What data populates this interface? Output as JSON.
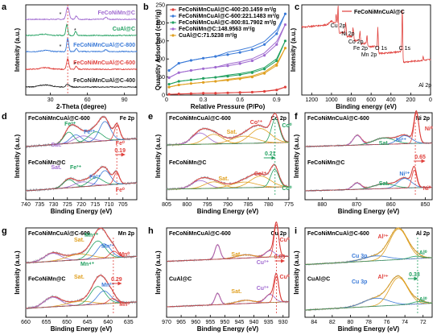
{
  "chart_data": [
    {
      "id": "a",
      "type": "line",
      "panel_letter": "a",
      "xlabel": "2-Theta (degree)",
      "ylabel": "Intensity (a.u.)",
      "xlim": [
        10,
        100
      ],
      "xticks": [
        30,
        60,
        90
      ],
      "series": [
        {
          "name": "FeCoNiMn@C",
          "color": "#a06ad0"
        },
        {
          "name": "CuAl@C",
          "color": "#22a060"
        },
        {
          "name": "FeCoNiMnCuAl@C-800",
          "color": "#3a7ad8"
        },
        {
          "name": "FeCoNiMnCuAl@C-600",
          "color": "#e0403c"
        },
        {
          "name": "FeCoNiMnCuAl@C-400",
          "color": "#222222"
        }
      ],
      "markers": [
        "*",
        "*",
        "*",
        "*"
      ]
    },
    {
      "id": "b",
      "type": "line",
      "panel_letter": "b",
      "xlabel": "Relative Pressure (P/Po)",
      "ylabel": "Quantity Adsorbed (cm³/g)",
      "xlim": [
        0.0,
        1.0
      ],
      "ylim": [
        0,
        250
      ],
      "xticks": [
        0.0,
        0.3,
        0.6,
        0.9
      ],
      "yticks": [
        0,
        50,
        100,
        150,
        200,
        250
      ],
      "series": [
        {
          "name": "FeCoNiMnCuAl@C-400:20.1459 m²/g",
          "color": "#e0403c",
          "values_x": [
            0.02,
            0.1,
            0.2,
            0.3,
            0.4,
            0.5,
            0.6,
            0.7,
            0.8,
            0.9,
            0.97
          ],
          "values_y": [
            2,
            3,
            4,
            5,
            5,
            6,
            7,
            8,
            10,
            14,
            22
          ]
        },
        {
          "name": "FeCoNiMnCuAl@C-600:221.1483 m²/g",
          "color": "#3a7ad8",
          "values_x": [
            0.02,
            0.1,
            0.2,
            0.3,
            0.4,
            0.5,
            0.6,
            0.7,
            0.8,
            0.9,
            0.97
          ],
          "values_y": [
            68,
            88,
            96,
            102,
            107,
            112,
            118,
            126,
            140,
            170,
            225
          ]
        },
        {
          "name": "FeCoNiMnCuAl@C-800:81.7902 m²/g",
          "color": "#22a060",
          "values_x": [
            0.02,
            0.1,
            0.2,
            0.3,
            0.4,
            0.5,
            0.6,
            0.7,
            0.8,
            0.9,
            0.97
          ],
          "values_y": [
            30,
            38,
            42,
            46,
            49,
            52,
            56,
            62,
            72,
            95,
            150
          ]
        },
        {
          "name": "FeCoNiMn@C:148.9563 m²/g",
          "color": "#a06ad0",
          "values_x": [
            0.02,
            0.1,
            0.2,
            0.3,
            0.4,
            0.5,
            0.6,
            0.7,
            0.8,
            0.9,
            0.97
          ],
          "values_y": [
            48,
            62,
            68,
            73,
            77,
            81,
            87,
            95,
            110,
            140,
            195
          ]
        },
        {
          "name": "CuAl@C:71.5238 m²/g",
          "color": "#e0a020",
          "values_x": [
            0.02,
            0.1,
            0.2,
            0.3,
            0.4,
            0.5,
            0.6,
            0.7,
            0.8,
            0.9,
            0.97
          ],
          "values_y": [
            22,
            28,
            32,
            35,
            38,
            41,
            45,
            50,
            60,
            82,
            130
          ]
        }
      ]
    },
    {
      "id": "c",
      "type": "line",
      "panel_letter": "c",
      "xlabel": "Binding energy (eV)",
      "ylabel": "Intensity (a.u.)",
      "xlim": [
        1300,
        0
      ],
      "xticks": [
        1200,
        1000,
        800,
        600,
        400,
        200,
        0
      ],
      "legend": "FeCoNiMnCuAl@C",
      "annotations": [
        "Cu 2p",
        "Ni 2p",
        "Co 2p",
        "Fe 2p",
        "Mn 2p",
        "O 1s",
        "C 1s",
        "Al 2p"
      ]
    },
    {
      "id": "d",
      "type": "line",
      "panel_letter": "d",
      "xlabel": "Binding Energy (eV)",
      "ylabel": "Intensity (a.u.)",
      "xlim": [
        740,
        700
      ],
      "xticks": [
        740,
        735,
        730,
        725,
        720,
        715,
        710,
        705
      ],
      "top_label": "FeCoNiMnCuAl@C-600",
      "bottom_label": "FeCoNiMn@C",
      "element": "Fe 2p",
      "shift": "0.19",
      "annotations": [
        "Fe³⁺",
        "Fe²⁺",
        "Sat.",
        "Fe⁰",
        "Sat.",
        "Fe³⁺",
        "Fe²⁺",
        "Fe⁰"
      ]
    },
    {
      "id": "e",
      "type": "line",
      "panel_letter": "e",
      "xlabel": "Binding Energy (eV)",
      "ylabel": "Intensity (a.u.)",
      "xlim": [
        805,
        775
      ],
      "xticks": [
        805,
        800,
        795,
        790,
        785,
        780,
        775
      ],
      "top_label": "FeCoNiMnCuAl@C-600",
      "bottom_label": "FeCoNiMn@C",
      "element": "Co 2p",
      "shift": "0.21",
      "annotations": [
        "Sat.",
        "Co²⁺",
        "Co⁰",
        "Sat.",
        "Co²⁺",
        "Co⁰"
      ]
    },
    {
      "id": "f",
      "type": "line",
      "panel_letter": "f",
      "xlabel": "Binding Energy (eV)",
      "ylabel": "Intensity (a.u.)",
      "xlim": [
        885,
        848
      ],
      "xticks": [
        880,
        870,
        860,
        850
      ],
      "top_label": "FeCoNiMnCuAl@C-600",
      "bottom_label": "FeCoNiMn@C",
      "element": "Ni 2p",
      "shift": "0.65",
      "annotations": [
        "Sat.",
        "Ni²⁺",
        "Ni⁰",
        "Sat.",
        "Ni²⁺",
        "Ni⁰"
      ]
    },
    {
      "id": "g",
      "type": "line",
      "panel_letter": "g",
      "xlabel": "Binding Energy (eV)",
      "ylabel": "Intensity (a.u.)",
      "xlim": [
        660,
        633
      ],
      "xticks": [
        660,
        655,
        650,
        645,
        640,
        635
      ],
      "top_label": "FeCoNiMnCuAl@C-600",
      "bottom_label": "FeCoNiMn@C",
      "element": "Mn 2p",
      "shift": "0.29",
      "annotations": [
        "Mn⁴⁺",
        "Sat.",
        "Mn²⁺",
        "Mn⁰",
        "Mn⁴⁺",
        "Sat.",
        "Mn²⁺",
        "Mn⁰"
      ]
    },
    {
      "id": "h",
      "type": "line",
      "panel_letter": "h",
      "xlabel": "Binding Energy (eV)",
      "ylabel": "Intensity (a.u.)",
      "xlim": [
        970,
        928
      ],
      "xticks": [
        970,
        965,
        960,
        955,
        950,
        945,
        940,
        935,
        930
      ],
      "top_label": "FeCoNiMnCuAl@C-600",
      "bottom_label": "CuAl@C",
      "element": "Cu 2p",
      "shift": "0.03",
      "annotations": [
        "Sat.",
        "Cu²⁺",
        "Cu⁰",
        "Sat.",
        "Cu²⁺",
        "Cu⁰"
      ]
    },
    {
      "id": "i",
      "type": "line",
      "panel_letter": "i",
      "xlabel": "Binding Energy (eV)",
      "ylabel": "Intensity (a.u.)",
      "xlim": [
        85,
        71
      ],
      "xticks": [
        84,
        82,
        80,
        78,
        76,
        74,
        72
      ],
      "top_label": "FeCoNiMnCuAl@C-600",
      "bottom_label": "CuAl@C",
      "element": "Al 2p",
      "shift": "0.33",
      "annotations": [
        "Cu 3p",
        "Al³⁺",
        "Al⁰",
        "Cu 3p",
        "Al³⁺",
        "Al⁰"
      ]
    }
  ]
}
